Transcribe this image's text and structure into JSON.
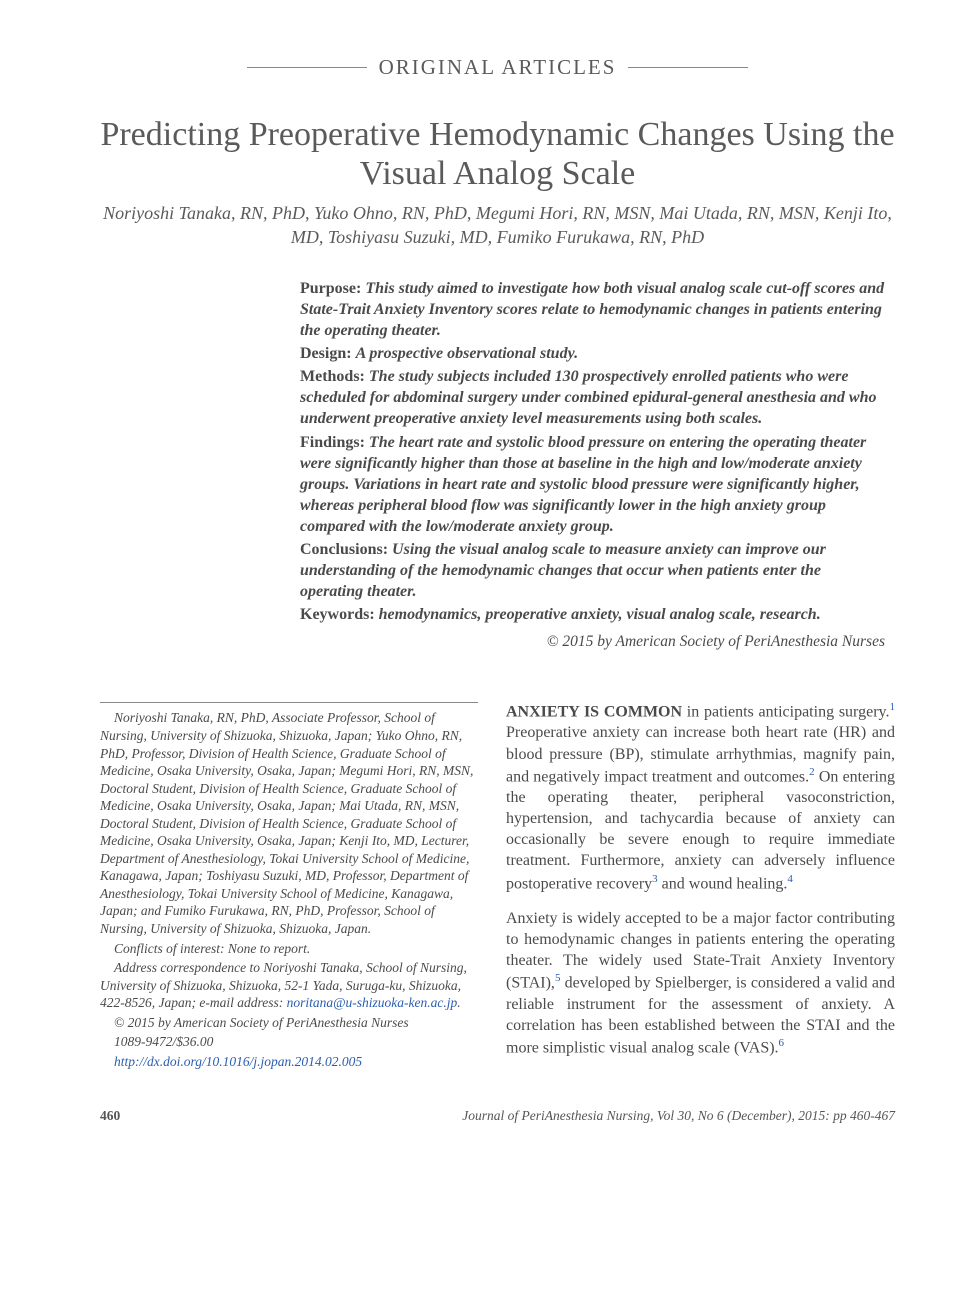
{
  "section_label": "ORIGINAL ARTICLES",
  "title": "Predicting Preoperative Hemodynamic Changes Using the Visual Analog Scale",
  "authors": "Noriyoshi Tanaka, RN, PhD, Yuko Ohno, RN, PhD, Megumi Hori, RN, MSN, Mai Utada, RN, MSN, Kenji Ito, MD, Toshiyasu Suzuki, MD, Fumiko Furukawa, RN, PhD",
  "abstract": {
    "purpose": {
      "label": "Purpose:",
      "text": "This study aimed to investigate how both visual analog scale cut-off scores and State-Trait Anxiety Inventory scores relate to hemodynamic changes in patients entering the operating theater."
    },
    "design": {
      "label": "Design:",
      "text": "A prospective observational study."
    },
    "methods": {
      "label": "Methods:",
      "text": "The study subjects included 130 prospectively enrolled patients who were scheduled for abdominal surgery under combined epidural-general anesthesia and who underwent preoperative anxiety level measurements using both scales."
    },
    "findings": {
      "label": "Findings:",
      "text": "The heart rate and systolic blood pressure on entering the operating theater were significantly higher than those at baseline in the high and low/moderate anxiety groups. Variations in heart rate and systolic blood pressure were significantly higher, whereas peripheral blood flow was significantly lower in the high anxiety group compared with the low/moderate anxiety group."
    },
    "conclusions": {
      "label": "Conclusions:",
      "text": "Using the visual analog scale to measure anxiety can improve our understanding of the hemodynamic changes that occur when patients enter the operating theater."
    }
  },
  "keywords": {
    "label": "Keywords:",
    "text": "hemodynamics, preoperative anxiety, visual analog scale, research."
  },
  "copyright": "© 2015 by American Society of PeriAnesthesia Nurses",
  "affiliations": "Noriyoshi Tanaka, RN, PhD, Associate Professor, School of Nursing, University of Shizuoka, Shizuoka, Japan; Yuko Ohno, RN, PhD, Professor, Division of Health Science, Graduate School of Medicine, Osaka University, Osaka, Japan; Megumi Hori, RN, MSN, Doctoral Student, Division of Health Science, Graduate School of Medicine, Osaka University, Osaka, Japan; Mai Utada, RN, MSN, Doctoral Student, Division of Health Science, Graduate School of Medicine, Osaka University, Osaka, Japan; Kenji Ito, MD, Lecturer, Department of Anesthesiology, Tokai University School of Medicine, Kanagawa, Japan; Toshiyasu Suzuki, MD, Professor, Department of Anesthesiology, Tokai University School of Medicine, Kanagawa, Japan; and Fumiko Furukawa, RN, PhD, Professor, School of Nursing, University of Shizuoka, Shizuoka, Japan.",
  "conflicts": "Conflicts of interest: None to report.",
  "correspondence": "Address correspondence to Noriyoshi Tanaka, School of Nursing, University of Shizuoka, Shizuoka, 52-1 Yada, Suruga-ku, Shizuoka, 422-8526, Japan; e-mail address: ",
  "email": "noritana@u-shizuoka-ken.ac.jp",
  "email_suffix": ".",
  "copyright_footer": "© 2015 by American Society of PeriAnesthesia Nurses",
  "issn": "1089-9472/$36.00",
  "doi": "http://dx.doi.org/10.1016/j.jopan.2014.02.005",
  "body": {
    "p1_lead": "ANXIETY IS COMMON",
    "p1_rest": " in patients anticipating surgery.",
    "p1_ref1": "1",
    "p1_cont": " Preoperative anxiety can increase both heart rate (HR) and blood pressure (BP), stimulate arrhythmias, magnify pain, and negatively impact treatment and outcomes.",
    "p1_ref2": "2",
    "p1_cont2": " On entering the operating theater, peripheral vasoconstriction, hypertension, and tachycardia because of anxiety can occasionally be severe enough to require immediate treatment. Furthermore, anxiety can adversely influence postoperative recovery",
    "p1_ref3": "3",
    "p1_cont3": " and wound healing.",
    "p1_ref4": "4",
    "p2": "Anxiety is widely accepted to be a major factor contributing to hemodynamic changes in patients entering the operating theater. The widely used State-Trait Anxiety Inventory (STAI),",
    "p2_ref5": "5",
    "p2_cont": " developed by Spielberger, is considered a valid and reliable instrument for the assessment of anxiety. A correlation has been established between the STAI and the more simplistic visual analog scale (VAS).",
    "p2_ref6": "6"
  },
  "footer": {
    "page": "460",
    "citation": "Journal of PeriAnesthesia Nursing, Vol 30, No 6 (December), 2015: pp 460-467"
  },
  "colors": {
    "text": "#5a5a5a",
    "link": "#2a5db0",
    "rule": "#888888",
    "background": "#ffffff"
  },
  "typography": {
    "title_fontsize": 34,
    "section_fontsize": 21,
    "authors_fontsize": 18,
    "abstract_fontsize": 16,
    "body_fontsize": 16,
    "footnote_fontsize": 13.5
  }
}
